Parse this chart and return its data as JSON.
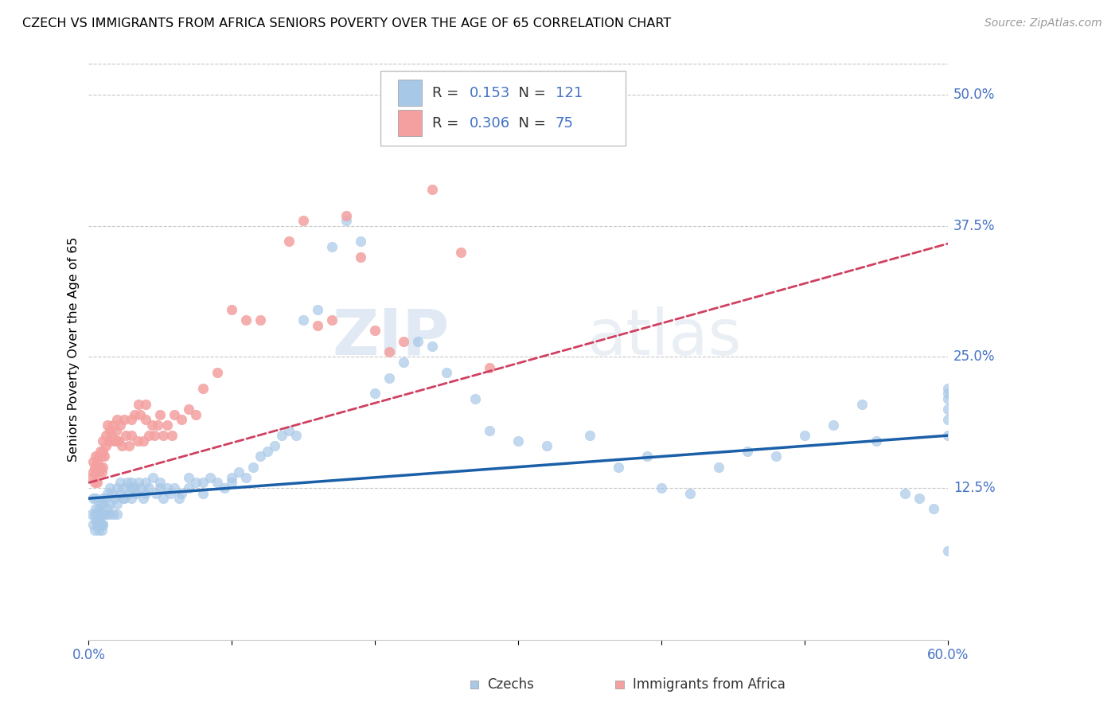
{
  "title": "CZECH VS IMMIGRANTS FROM AFRICA SENIORS POVERTY OVER THE AGE OF 65 CORRELATION CHART",
  "source": "Source: ZipAtlas.com",
  "ylabel": "Seniors Poverty Over the Age of 65",
  "legend_blue_R": "0.153",
  "legend_blue_N": "121",
  "legend_pink_R": "0.306",
  "legend_pink_N": "75",
  "legend_label_blue": "Czechs",
  "legend_label_pink": "Immigrants from Africa",
  "blue_color": "#a8c8e8",
  "pink_color": "#f4a0a0",
  "blue_line_color": "#1a5fa8",
  "pink_line_color": "#d04060",
  "axis_label_color": "#4472c4",
  "xmin": 0.0,
  "xmax": 0.6,
  "ymin": -0.02,
  "ymax": 0.535,
  "blue_intercept": 0.115,
  "blue_slope": 0.1,
  "pink_intercept": 0.13,
  "pink_slope": 0.38,
  "czechs_x": [
    0.002,
    0.003,
    0.003,
    0.004,
    0.004,
    0.005,
    0.005,
    0.005,
    0.006,
    0.006,
    0.007,
    0.007,
    0.007,
    0.008,
    0.008,
    0.008,
    0.009,
    0.009,
    0.01,
    0.01,
    0.01,
    0.01,
    0.01,
    0.01,
    0.012,
    0.012,
    0.013,
    0.013,
    0.014,
    0.015,
    0.015,
    0.016,
    0.017,
    0.018,
    0.02,
    0.02,
    0.02,
    0.022,
    0.022,
    0.024,
    0.025,
    0.025,
    0.027,
    0.028,
    0.03,
    0.03,
    0.03,
    0.032,
    0.033,
    0.035,
    0.036,
    0.038,
    0.04,
    0.04,
    0.042,
    0.045,
    0.047,
    0.05,
    0.05,
    0.052,
    0.055,
    0.057,
    0.06,
    0.063,
    0.065,
    0.07,
    0.07,
    0.075,
    0.08,
    0.08,
    0.085,
    0.09,
    0.095,
    0.1,
    0.1,
    0.105,
    0.11,
    0.115,
    0.12,
    0.125,
    0.13,
    0.135,
    0.14,
    0.145,
    0.15,
    0.16,
    0.17,
    0.18,
    0.19,
    0.2,
    0.21,
    0.22,
    0.23,
    0.24,
    0.25,
    0.27,
    0.28,
    0.3,
    0.32,
    0.35,
    0.37,
    0.39,
    0.4,
    0.42,
    0.44,
    0.46,
    0.48,
    0.5,
    0.52,
    0.54,
    0.55,
    0.57,
    0.58,
    0.59,
    0.6,
    0.6,
    0.6,
    0.6,
    0.6,
    0.6,
    0.6
  ],
  "czechs_y": [
    0.1,
    0.09,
    0.115,
    0.085,
    0.1,
    0.095,
    0.105,
    0.115,
    0.09,
    0.1,
    0.085,
    0.095,
    0.105,
    0.09,
    0.1,
    0.11,
    0.085,
    0.1,
    0.09,
    0.1,
    0.11,
    0.115,
    0.1,
    0.09,
    0.1,
    0.115,
    0.105,
    0.12,
    0.1,
    0.11,
    0.125,
    0.12,
    0.1,
    0.115,
    0.11,
    0.125,
    0.1,
    0.12,
    0.13,
    0.115,
    0.125,
    0.115,
    0.13,
    0.12,
    0.125,
    0.13,
    0.115,
    0.125,
    0.12,
    0.13,
    0.125,
    0.115,
    0.13,
    0.12,
    0.125,
    0.135,
    0.12,
    0.125,
    0.13,
    0.115,
    0.125,
    0.12,
    0.125,
    0.115,
    0.12,
    0.125,
    0.135,
    0.13,
    0.13,
    0.12,
    0.135,
    0.13,
    0.125,
    0.135,
    0.13,
    0.14,
    0.135,
    0.145,
    0.155,
    0.16,
    0.165,
    0.175,
    0.18,
    0.175,
    0.285,
    0.295,
    0.355,
    0.38,
    0.36,
    0.215,
    0.23,
    0.245,
    0.265,
    0.26,
    0.235,
    0.21,
    0.18,
    0.17,
    0.165,
    0.175,
    0.145,
    0.155,
    0.125,
    0.12,
    0.145,
    0.16,
    0.155,
    0.175,
    0.185,
    0.205,
    0.17,
    0.12,
    0.115,
    0.105,
    0.2,
    0.21,
    0.215,
    0.22,
    0.19,
    0.175,
    0.065
  ],
  "africa_x": [
    0.002,
    0.003,
    0.003,
    0.004,
    0.004,
    0.005,
    0.005,
    0.006,
    0.006,
    0.007,
    0.007,
    0.008,
    0.008,
    0.009,
    0.009,
    0.01,
    0.01,
    0.01,
    0.011,
    0.012,
    0.012,
    0.013,
    0.014,
    0.015,
    0.015,
    0.016,
    0.017,
    0.018,
    0.019,
    0.02,
    0.02,
    0.021,
    0.022,
    0.023,
    0.025,
    0.026,
    0.028,
    0.03,
    0.03,
    0.032,
    0.034,
    0.035,
    0.036,
    0.038,
    0.04,
    0.04,
    0.042,
    0.044,
    0.046,
    0.048,
    0.05,
    0.052,
    0.055,
    0.058,
    0.06,
    0.065,
    0.07,
    0.075,
    0.08,
    0.09,
    0.1,
    0.11,
    0.12,
    0.14,
    0.15,
    0.16,
    0.17,
    0.18,
    0.19,
    0.2,
    0.21,
    0.22,
    0.24,
    0.26,
    0.28
  ],
  "africa_y": [
    0.135,
    0.14,
    0.15,
    0.13,
    0.145,
    0.14,
    0.155,
    0.13,
    0.15,
    0.14,
    0.155,
    0.145,
    0.16,
    0.14,
    0.155,
    0.145,
    0.16,
    0.17,
    0.155,
    0.165,
    0.175,
    0.185,
    0.17,
    0.17,
    0.18,
    0.175,
    0.185,
    0.17,
    0.18,
    0.17,
    0.19,
    0.17,
    0.185,
    0.165,
    0.19,
    0.175,
    0.165,
    0.19,
    0.175,
    0.195,
    0.17,
    0.205,
    0.195,
    0.17,
    0.205,
    0.19,
    0.175,
    0.185,
    0.175,
    0.185,
    0.195,
    0.175,
    0.185,
    0.175,
    0.195,
    0.19,
    0.2,
    0.195,
    0.22,
    0.235,
    0.295,
    0.285,
    0.285,
    0.36,
    0.38,
    0.28,
    0.285,
    0.385,
    0.345,
    0.275,
    0.255,
    0.265,
    0.41,
    0.35,
    0.24
  ]
}
